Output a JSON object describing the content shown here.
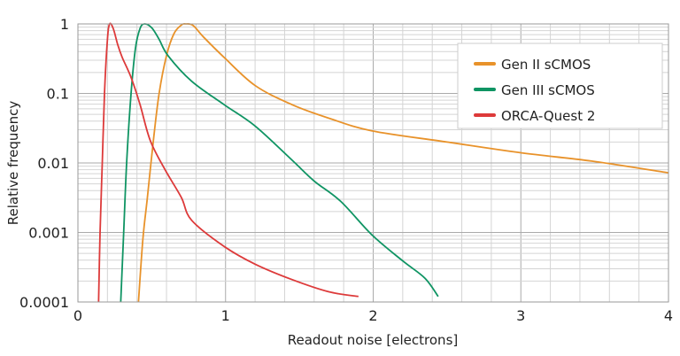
{
  "chart_data": {
    "type": "line",
    "title": "",
    "xlabel": "Readout noise [electrons]",
    "ylabel": "Relative frequency",
    "xlim": [
      0,
      4
    ],
    "ylim": [
      0.0001,
      1
    ],
    "yscale": "log",
    "grid": true,
    "legend_position": "top-right",
    "x_ticks": [
      "0",
      "1",
      "2",
      "3",
      "4"
    ],
    "y_ticks": [
      "1",
      "0.1",
      "0.01",
      "0.001",
      "0.0001"
    ],
    "series": [
      {
        "name": "Gen II sCMOS",
        "color": "#e8922a",
        "points": [
          [
            0.41,
            0.0001
          ],
          [
            0.44,
            0.0008
          ],
          [
            0.47,
            0.0031
          ],
          [
            0.51,
            0.02
          ],
          [
            0.55,
            0.1
          ],
          [
            0.6,
            0.35
          ],
          [
            0.65,
            0.72
          ],
          [
            0.7,
            0.96
          ],
          [
            0.73,
            1.0
          ],
          [
            0.78,
            0.95
          ],
          [
            0.85,
            0.65
          ],
          [
            0.99,
            0.33
          ],
          [
            1.2,
            0.13
          ],
          [
            1.45,
            0.069
          ],
          [
            1.7,
            0.044
          ],
          [
            1.99,
            0.029
          ],
          [
            2.5,
            0.02
          ],
          [
            3.0,
            0.014
          ],
          [
            3.5,
            0.0105
          ],
          [
            4.0,
            0.0072
          ]
        ]
      },
      {
        "name": "Gen III sCMOS",
        "color": "#0f9463",
        "points": [
          [
            0.29,
            0.0001
          ],
          [
            0.31,
            0.001
          ],
          [
            0.33,
            0.01
          ],
          [
            0.36,
            0.1
          ],
          [
            0.39,
            0.45
          ],
          [
            0.42,
            0.85
          ],
          [
            0.45,
            1.0
          ],
          [
            0.5,
            0.88
          ],
          [
            0.55,
            0.6
          ],
          [
            0.61,
            0.35
          ],
          [
            0.77,
            0.15
          ],
          [
            0.99,
            0.069
          ],
          [
            1.2,
            0.034
          ],
          [
            1.45,
            0.011
          ],
          [
            1.6,
            0.0055
          ],
          [
            1.78,
            0.0028
          ],
          [
            1.99,
            0.00093
          ],
          [
            2.2,
            0.00039
          ],
          [
            2.35,
            0.00022
          ],
          [
            2.44,
            0.00012
          ]
        ]
      },
      {
        "name": "ORCA-Quest 2",
        "color": "#dd3a3a",
        "points": [
          [
            0.14,
            0.0001
          ],
          [
            0.15,
            0.001
          ],
          [
            0.165,
            0.01
          ],
          [
            0.18,
            0.1
          ],
          [
            0.2,
            0.6
          ],
          [
            0.215,
            1.0
          ],
          [
            0.24,
            0.85
          ],
          [
            0.27,
            0.5
          ],
          [
            0.3,
            0.33
          ],
          [
            0.36,
            0.17
          ],
          [
            0.42,
            0.07
          ],
          [
            0.49,
            0.021
          ],
          [
            0.59,
            0.008
          ],
          [
            0.7,
            0.0032
          ],
          [
            0.77,
            0.0015
          ],
          [
            0.99,
            0.00063
          ],
          [
            1.2,
            0.00035
          ],
          [
            1.45,
            0.00021
          ],
          [
            1.7,
            0.00014
          ],
          [
            1.9,
            0.00012
          ]
        ]
      }
    ]
  }
}
